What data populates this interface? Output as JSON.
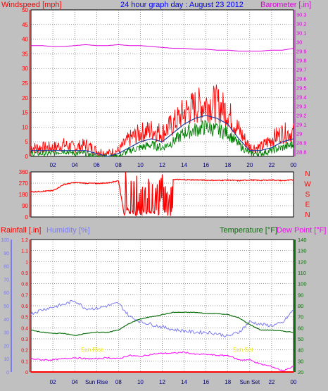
{
  "colors": {
    "background": "#c0c0c0",
    "plot_background": "#ffffff",
    "windspeed": "#ff0000",
    "wind_avg": "#1c3fa0",
    "wind_green": "#008000",
    "barometer": "#dd00dd",
    "humidity": "#7b7bef",
    "temperature": "#0a6e0a",
    "dew_point": "#ff00ff",
    "rainfall": "#ff0000",
    "sun_label": "#f0f000",
    "title": "#0000ff"
  },
  "header": {
    "left_label": "Windspeed [mph]",
    "title": "24 hour graph day : August 23 2012",
    "right_label": "Barometer [.in]"
  },
  "bottom_header": {
    "rainfall": "Rainfall [.in]",
    "humidity": "Humidity [%]",
    "temperature": "Temperature [°F]",
    "dew_point": "Dew Point [°F]"
  },
  "sun": {
    "rise_label": "Sun Rise",
    "set_label": "Sun Set",
    "rise_axis": "Sun Rise",
    "set_axis": "Sun Set"
  },
  "x_ticks_top": [
    "02",
    "04",
    "06",
    "08",
    "10",
    "12",
    "14",
    "16",
    "18",
    "20",
    "22",
    "00"
  ],
  "x_ticks_bottom": [
    "02",
    "04",
    "Sun Rise",
    "08",
    "10",
    "12",
    "14",
    "16",
    "18",
    "Sun Set",
    "22",
    "00"
  ],
  "chart_data": [
    {
      "type": "line",
      "yaxis_left": {
        "label": "Windspeed [mph]",
        "ticks": [
          0,
          5,
          10,
          15,
          20,
          25,
          30,
          35,
          40,
          45,
          50
        ],
        "ylim": [
          0,
          50
        ]
      },
      "yaxis_right": {
        "label": "Barometer [.in]",
        "ticks": [
          "28.8",
          "28.9",
          "29",
          "29.1",
          "29.2",
          "29.3",
          "29.4",
          "29.5",
          "29.6",
          "29.7",
          "29.8",
          "29.9",
          "30",
          "30.1",
          "30.2",
          "30.3"
        ],
        "ylim": [
          28.75,
          30.35
        ]
      },
      "x_hours": [
        0,
        1,
        2,
        3,
        4,
        5,
        6,
        7,
        8,
        9,
        10,
        11,
        12,
        13,
        14,
        15,
        16,
        17,
        18,
        19,
        20,
        21,
        22,
        23,
        24
      ],
      "series": [
        {
          "name": "Windspeed [mph]",
          "values": [
            3,
            3,
            3,
            4,
            3,
            4,
            2,
            1,
            2,
            6,
            8,
            9,
            8,
            11,
            15,
            17,
            18,
            18,
            15,
            9,
            3,
            3,
            6,
            8,
            8
          ]
        },
        {
          "values": [
            2,
            2,
            2,
            2,
            2,
            2,
            1,
            0,
            1,
            3,
            5,
            6,
            5,
            8,
            11,
            13,
            14,
            13,
            11,
            6,
            2,
            2,
            3,
            5,
            6
          ]
        },
        {
          "values": [
            1,
            1,
            1,
            2,
            1,
            1,
            0,
            0,
            0,
            2,
            3,
            4,
            3,
            5,
            8,
            9,
            10,
            9,
            8,
            4,
            1,
            1,
            2,
            3,
            4
          ]
        },
        {
          "name": "Barometer [.in]",
          "values": [
            29.96,
            29.96,
            29.95,
            29.95,
            29.96,
            29.97,
            29.96,
            29.96,
            29.97,
            29.96,
            29.96,
            29.95,
            29.94,
            29.93,
            29.93,
            29.92,
            29.92,
            29.91,
            29.91,
            29.9,
            29.9,
            29.9,
            29.91,
            29.91,
            29.93
          ]
        }
      ]
    },
    {
      "type": "line",
      "yaxis_left": {
        "ticks": [
          0,
          90,
          180,
          270,
          360
        ],
        "ylim": [
          0,
          360
        ]
      },
      "yaxis_right": {
        "ticks": [
          "N",
          "W",
          "S",
          "E",
          "N"
        ]
      },
      "x_hours": [
        0,
        1,
        2,
        3,
        4,
        5,
        6,
        7,
        8,
        8.5,
        9,
        10,
        11,
        12,
        12.5,
        13,
        14,
        15,
        16,
        17,
        18,
        19,
        20,
        21,
        22,
        23,
        24
      ],
      "series": [
        {
          "values": [
            200,
            205,
            210,
            260,
            275,
            270,
            268,
            272,
            290,
            30,
            60,
            40,
            80,
            30,
            120,
            300,
            298,
            296,
            294,
            292,
            295,
            290,
            296,
            292,
            296,
            290,
            296
          ]
        }
      ]
    },
    {
      "type": "line",
      "yaxis_left_rain": {
        "label": "Rainfall [.in]",
        "ticks": [
          "0",
          "0.1",
          "0.2",
          "0.3",
          "0.4",
          "0.5",
          "0.6",
          "0.7",
          "0.8",
          "0.9",
          "1",
          "1.1",
          "1.2"
        ],
        "ylim": [
          0,
          1.2
        ]
      },
      "yaxis_left_humidity": {
        "label": "Humidity [%]",
        "ticks": [
          0,
          10,
          20,
          30,
          40,
          50,
          60,
          70,
          80,
          90,
          100
        ],
        "ylim": [
          0,
          100
        ]
      },
      "yaxis_right": {
        "label": "Temperature [°F]",
        "ticks": [
          20,
          30,
          40,
          50,
          60,
          70,
          80,
          90,
          100,
          110,
          120,
          130,
          140
        ],
        "ylim": [
          20,
          140
        ]
      },
      "x_hours": [
        0,
        1,
        2,
        3,
        4,
        5,
        6,
        7,
        8,
        9,
        10,
        11,
        12,
        13,
        14,
        15,
        16,
        17,
        18,
        19,
        20,
        21,
        22,
        23,
        24
      ],
      "series": [
        {
          "name": "Humidity [%]",
          "values": [
            44,
            47,
            49,
            51,
            54,
            48,
            48,
            50,
            52,
            42,
            38,
            36,
            34,
            32,
            31,
            30,
            30,
            29,
            27,
            30,
            38,
            36,
            35,
            37,
            47
          ]
        },
        {
          "name": "Temperature [°F]",
          "values": [
            58,
            56,
            55,
            55,
            53,
            55,
            56,
            56,
            58,
            64,
            68,
            70,
            72,
            74,
            74,
            74,
            73,
            73,
            72,
            69,
            63,
            58,
            58,
            57,
            56
          ]
        },
        {
          "name": "Dew Point [°F]",
          "values": [
            32,
            31,
            31,
            32,
            33,
            32,
            32,
            33,
            32,
            35,
            34,
            36,
            37,
            37,
            38,
            36,
            36,
            35,
            35,
            31,
            31,
            27,
            25,
            21,
            25
          ]
        },
        {
          "name": "Rainfall [.in]",
          "values": [
            0,
            0,
            0,
            0,
            0,
            0,
            0,
            0,
            0,
            0,
            0,
            0,
            0,
            0,
            0,
            0,
            0,
            0,
            0,
            0,
            0,
            0,
            0,
            0,
            0
          ]
        }
      ]
    }
  ]
}
